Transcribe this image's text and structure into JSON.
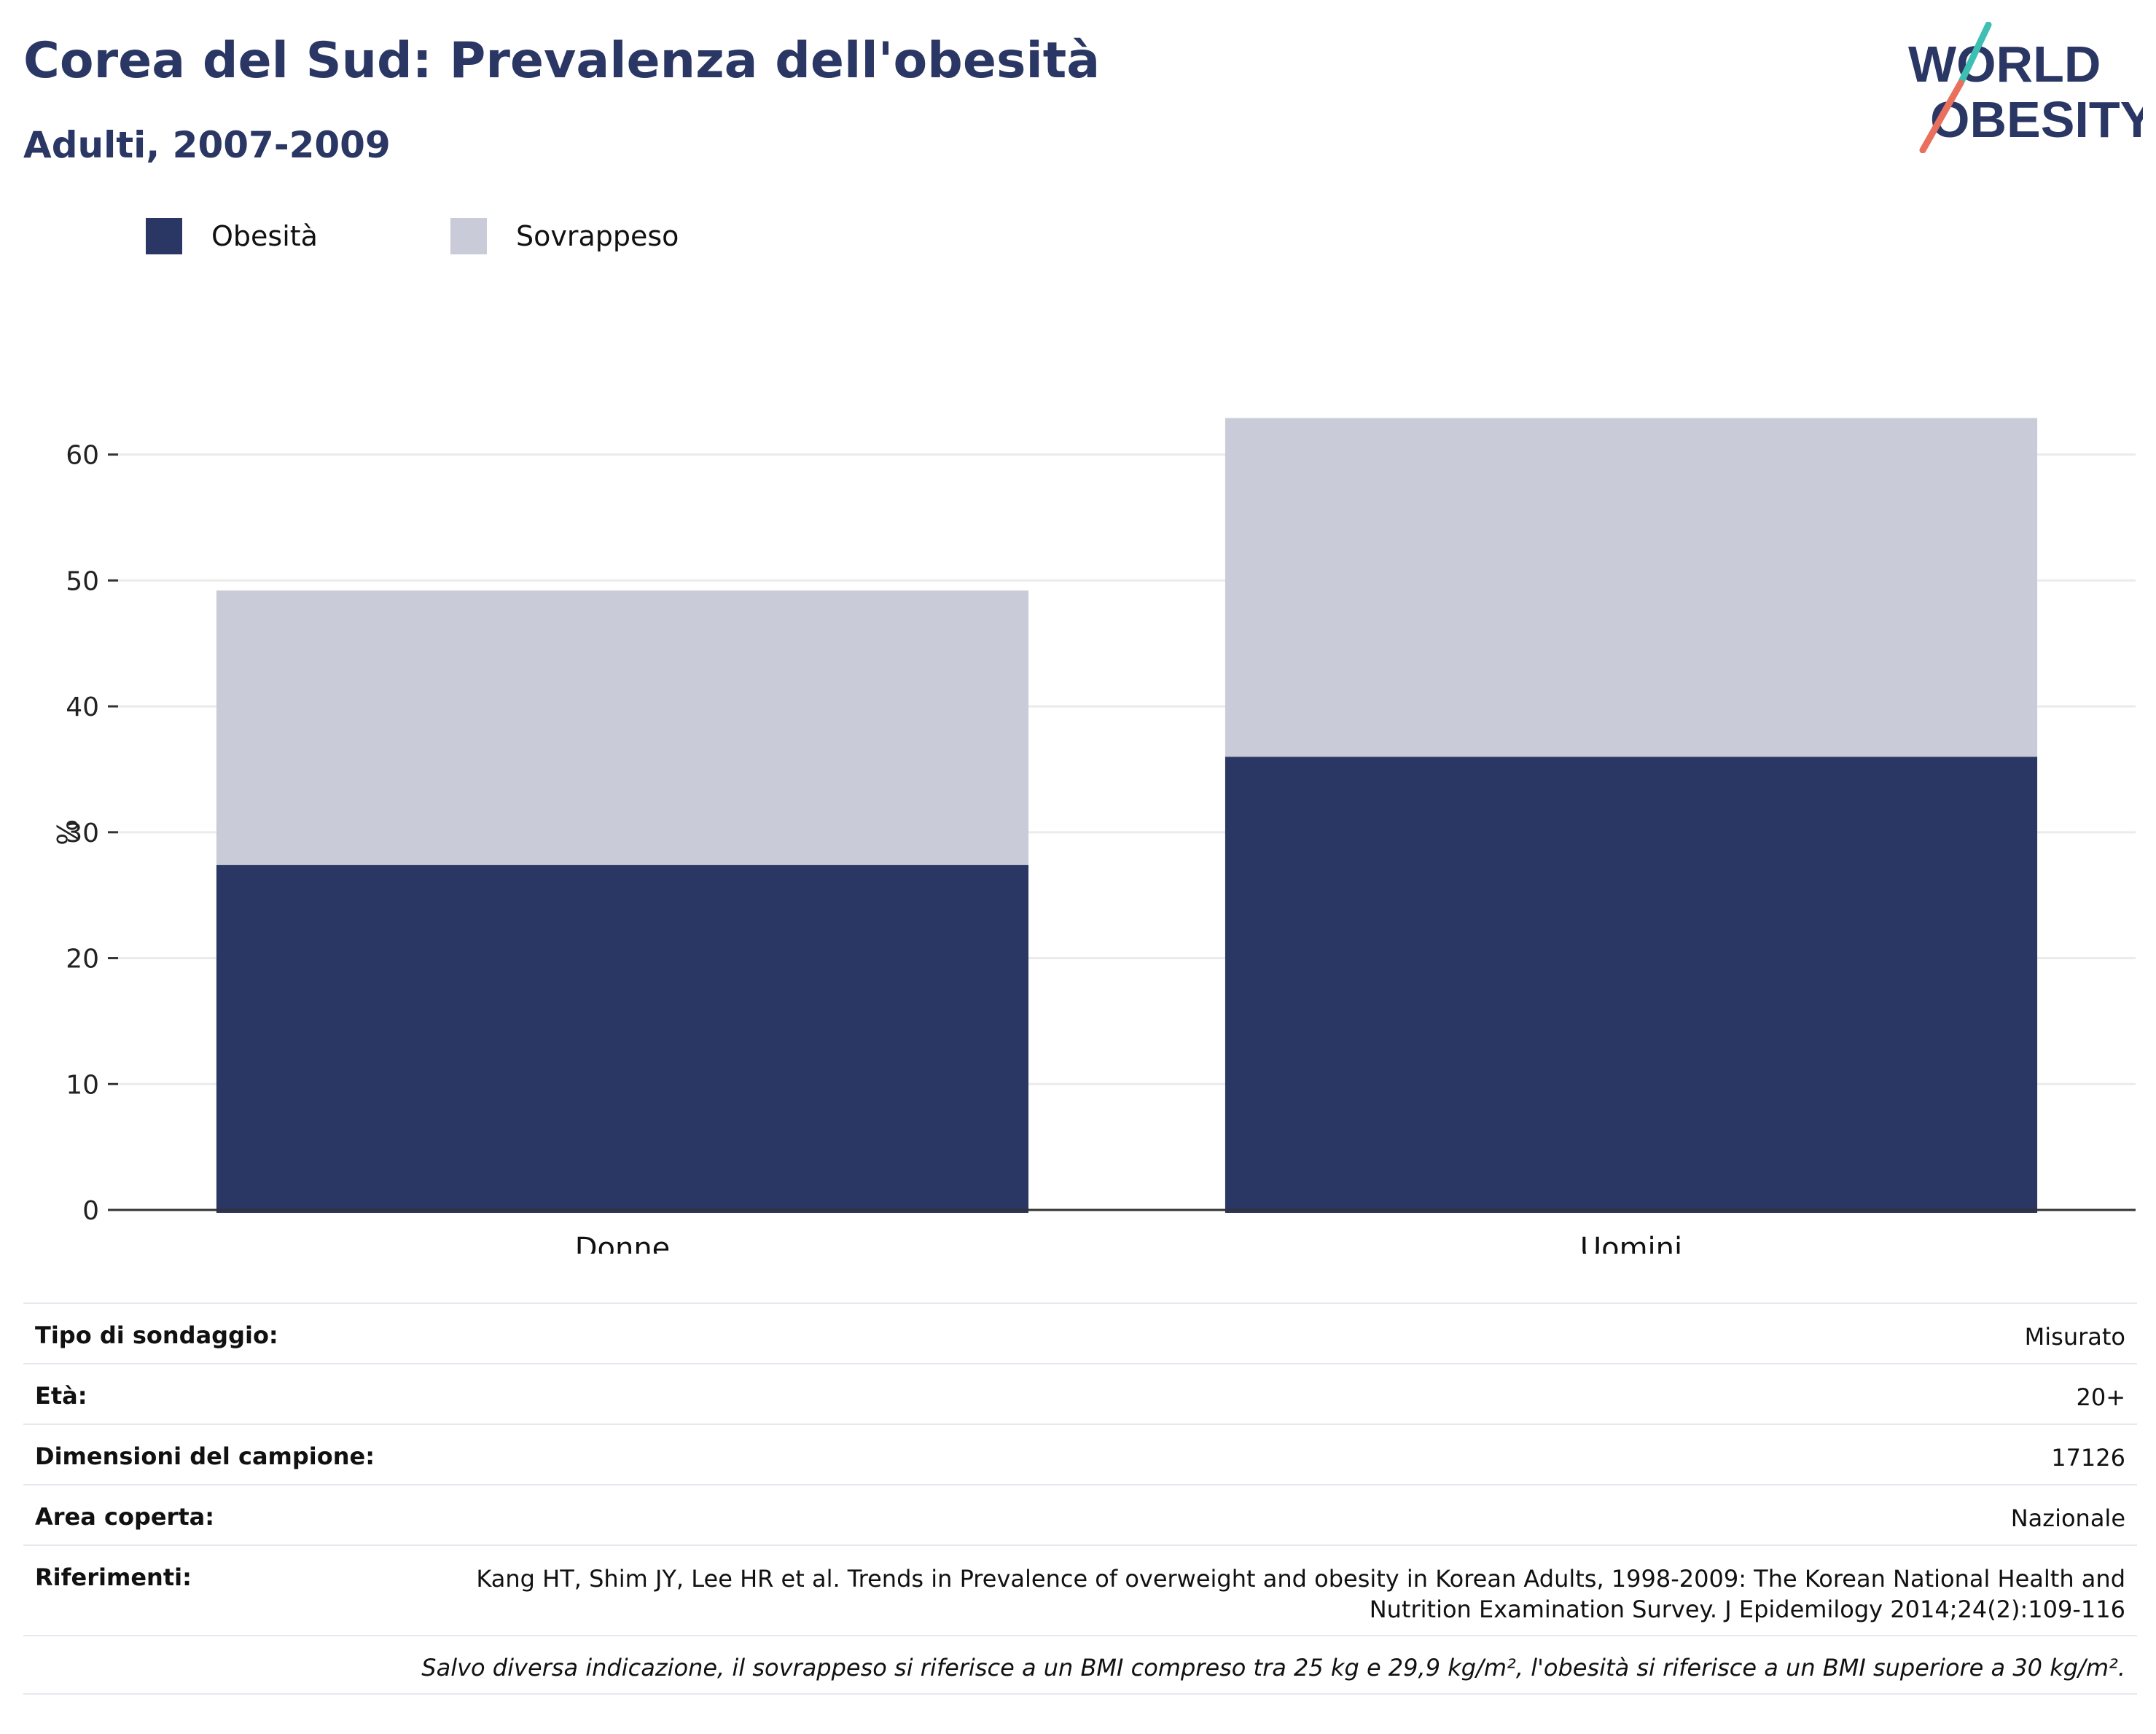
{
  "title": "Corea del Sud: Prevalenza dell'obesità",
  "subtitle": "Adulti, 2007-2009",
  "logo": {
    "line1": "WORLD",
    "line2": "OBESITY"
  },
  "colors": {
    "obesity": "#2a3663",
    "overweight": "#c9ccd8",
    "accent_teal": "#3dbfb4",
    "accent_coral": "#e8705c"
  },
  "chart_data": {
    "type": "bar",
    "stacked": true,
    "categories": [
      "Donne",
      "Uomini"
    ],
    "series": [
      {
        "name": "Obesità",
        "values": [
          27.4,
          36.0
        ],
        "color": "#2a3663"
      },
      {
        "name": "Sovrappeso",
        "values": [
          21.8,
          26.9
        ],
        "color": "#c9ccd8"
      }
    ],
    "ylabel": "%",
    "ylim": [
      0,
      66
    ],
    "yticks": [
      0,
      10,
      20,
      30,
      40,
      50,
      60
    ],
    "grid": true,
    "legend": "top-left"
  },
  "info": {
    "rows": [
      {
        "label": "Tipo di sondaggio:",
        "value": "Misurato"
      },
      {
        "label": "Età:",
        "value": "20+"
      },
      {
        "label": "Dimensioni del campione:",
        "value": "17126"
      },
      {
        "label": "Area coperta:",
        "value": "Nazionale"
      },
      {
        "label": "Riferimenti:",
        "value": "Kang HT, Shim JY, Lee HR et al. Trends in Prevalence of overweight and obesity in Korean Adults, 1998-2009: The Korean National Health and Nutrition Examination Survey. J Epidemilogy 2014;24(2):109-116"
      }
    ],
    "note": "Salvo diversa indicazione, il sovrappeso si riferisce a un BMI compreso tra 25 kg e 29,9 kg/m², l'obesità si riferisce a un BMI superiore a 30 kg/m²."
  }
}
